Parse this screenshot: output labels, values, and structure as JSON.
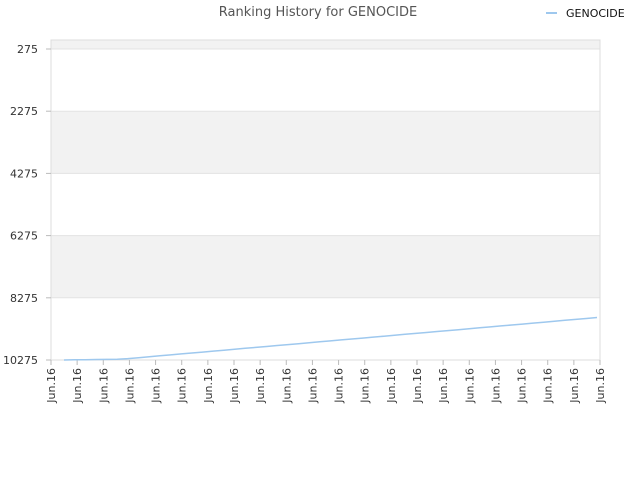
{
  "chart_data": {
    "type": "line",
    "title": "Ranking History for GENOCIDE",
    "xlabel": "",
    "ylabel": "",
    "y_inverted": true,
    "ylim": [
      275,
      10275
    ],
    "y_ticks": [
      "275",
      "2275",
      "4275",
      "6275",
      "8275",
      "10275"
    ],
    "y_tick_values": [
      275,
      2275,
      4275,
      6275,
      8275,
      10275
    ],
    "x_tick_labels": [
      "Jun.16",
      "Jun.16",
      "Jun.16",
      "Jun.16",
      "Jun.16",
      "Jun.16",
      "Jun.16",
      "Jun.16",
      "Jun.16",
      "Jun.16",
      "Jun.16",
      "Jun.16",
      "Jun.16",
      "Jun.16",
      "Jun.16",
      "Jun.16",
      "Jun.16",
      "Jun.16",
      "Jun.16",
      "Jun.16",
      "Jun.16",
      "Jun.16"
    ],
    "grid": true,
    "legend_position": "top-right",
    "series": [
      {
        "name": "GENOCIDE",
        "color": "#9ec8ee",
        "values": [
          10275,
          10270,
          10265,
          10260,
          10255,
          10250,
          10230,
          10200,
          10170,
          10140,
          10110,
          10080,
          10050,
          10020,
          9990,
          9960,
          9930,
          9900,
          9870,
          9840,
          9810,
          9780,
          9750,
          9720,
          9690,
          9660,
          9630,
          9600,
          9570,
          9540,
          9510,
          9480,
          9450,
          9420,
          9390,
          9360,
          9330,
          9300,
          9270,
          9240,
          9210,
          9180,
          9150,
          9120,
          9090,
          9060,
          9030,
          9000,
          8970,
          8940,
          8910
        ]
      }
    ]
  }
}
